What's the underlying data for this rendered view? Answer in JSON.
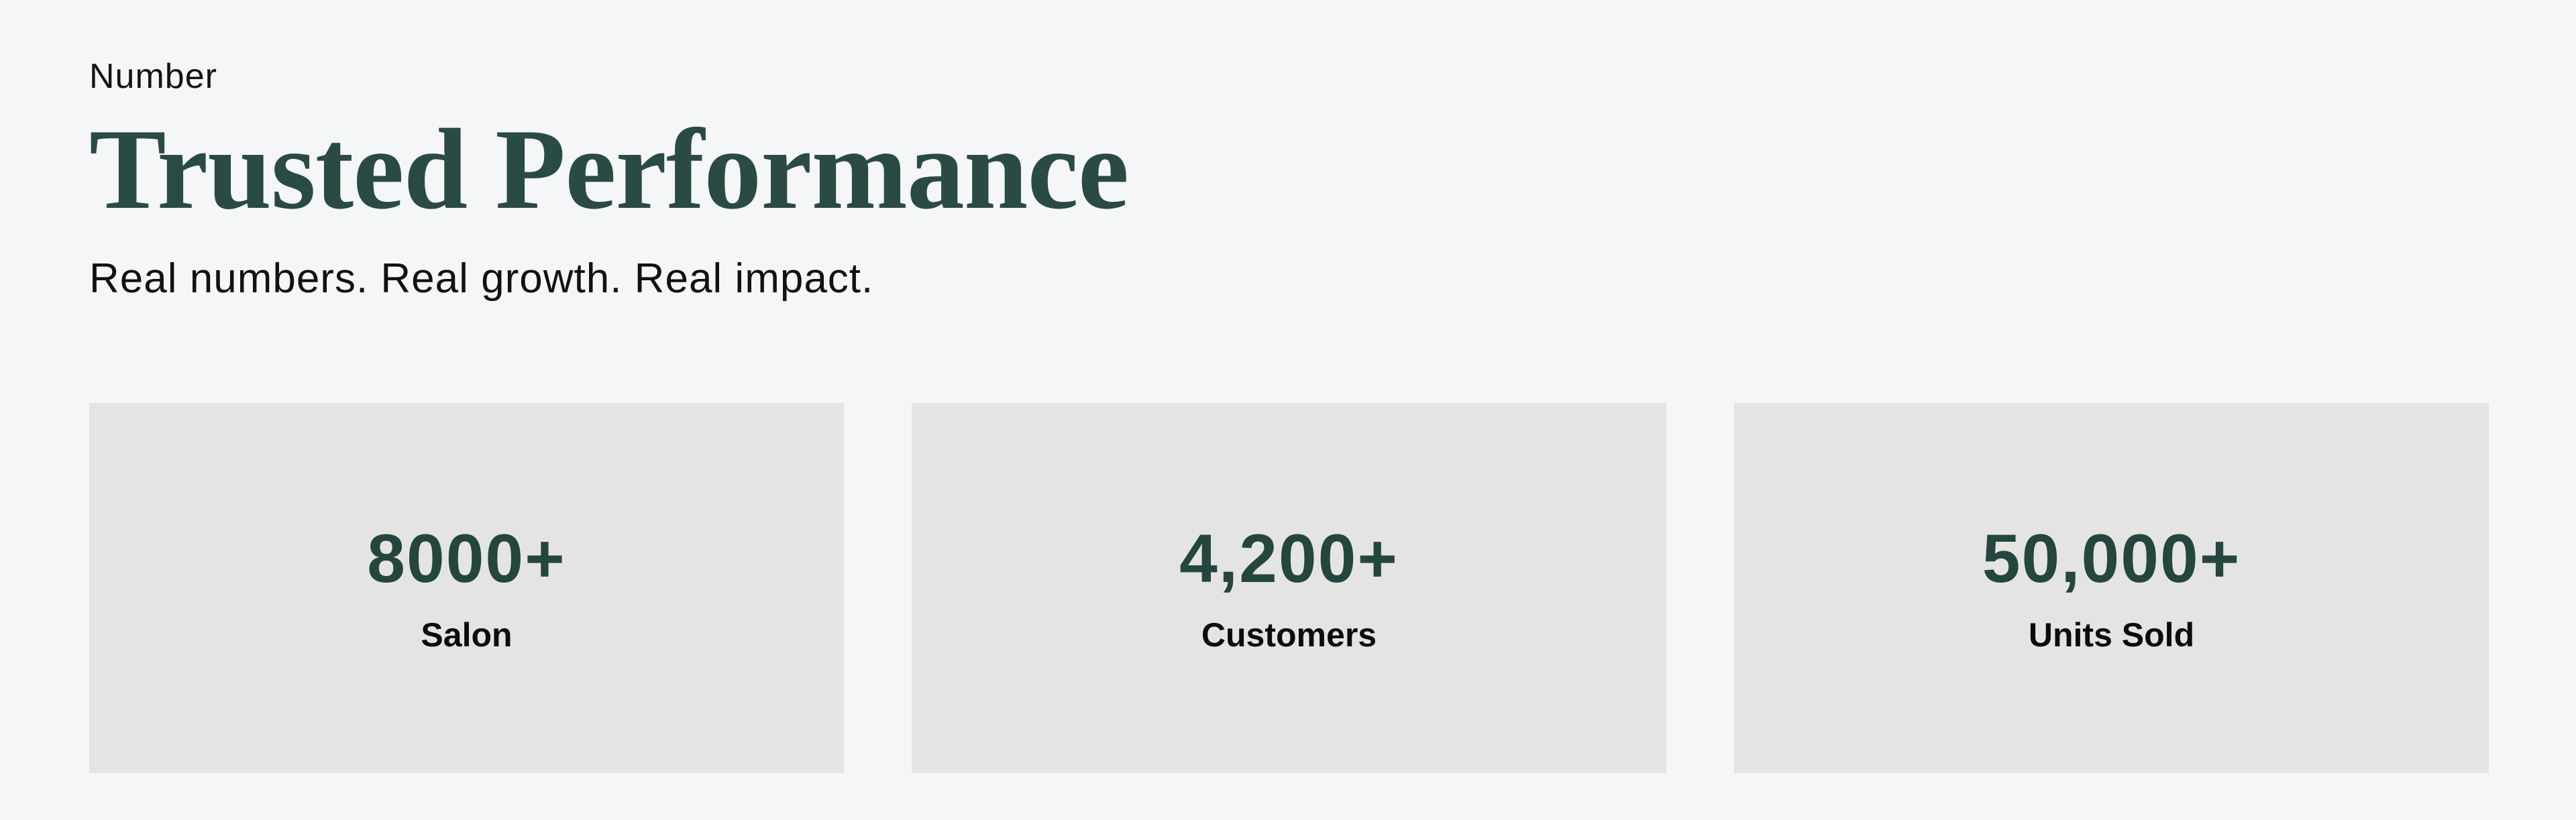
{
  "page": {
    "background": "#f5f6f8",
    "card_background": "#e4e5e3",
    "heading_color": "#2a4b44",
    "stat_value_color": "#25463f"
  },
  "header": {
    "eyebrow": "Number",
    "title": "Trusted Performance",
    "subtitle": "Real numbers. Real growth. Real impact."
  },
  "stats": [
    {
      "value": "8000+",
      "label": "Salon"
    },
    {
      "value": "4,200+",
      "label": "Customers"
    },
    {
      "value": "50,000+",
      "label": "Units Sold"
    }
  ]
}
